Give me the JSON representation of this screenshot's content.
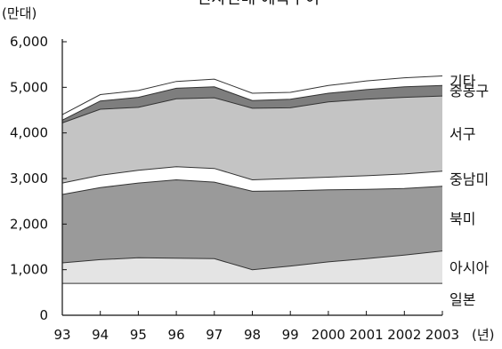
{
  "chart_data": {
    "type": "area",
    "stacked": true,
    "title": "전자전매 예측추이",
    "ylabel": "(만대)",
    "xlabel": "(년)",
    "x": [
      1993,
      1994,
      1995,
      1996,
      1997,
      1998,
      1999,
      2000,
      2001,
      2002,
      2003
    ],
    "x_tick_labels": [
      "93",
      "94",
      "95",
      "96",
      "97",
      "98",
      "99",
      "2000",
      "2001",
      "2002",
      "2003"
    ],
    "ylim": [
      0,
      6000
    ],
    "y_ticks": [
      0,
      1000,
      2000,
      3000,
      4000,
      5000,
      6000
    ],
    "y_tick_labels": [
      "0",
      "1,000",
      "2,000",
      "3,000",
      "4,000",
      "5,000",
      "6,000"
    ],
    "grid": false,
    "legend": "labels placed at right end of each band",
    "series": [
      {
        "name": "일본",
        "values": [
          700,
          700,
          700,
          700,
          700,
          700,
          700,
          700,
          700,
          700,
          700
        ],
        "color": "#ffffff"
      },
      {
        "name": "아시아",
        "values": [
          450,
          520,
          560,
          550,
          540,
          300,
          380,
          470,
          540,
          620,
          710
        ],
        "color": "#e4e4e4"
      },
      {
        "name": "북미",
        "values": [
          1500,
          1580,
          1640,
          1720,
          1680,
          1720,
          1650,
          1580,
          1520,
          1460,
          1420
        ],
        "color": "#9a9a9a"
      },
      {
        "name": "중남미",
        "values": [
          250,
          270,
          280,
          290,
          300,
          250,
          270,
          280,
          300,
          320,
          330
        ],
        "color": "#ffffff"
      },
      {
        "name": "서구",
        "values": [
          1320,
          1450,
          1380,
          1490,
          1550,
          1570,
          1550,
          1650,
          1680,
          1680,
          1650
        ],
        "color": "#c4c4c4"
      },
      {
        "name": "중동구",
        "values": [
          60,
          180,
          220,
          230,
          240,
          170,
          190,
          190,
          210,
          230,
          230
        ],
        "color": "#7e7e7e"
      },
      {
        "name": "기타",
        "values": [
          120,
          140,
          150,
          150,
          170,
          160,
          150,
          170,
          190,
          200,
          210
        ],
        "color": "#ffffff"
      }
    ]
  }
}
